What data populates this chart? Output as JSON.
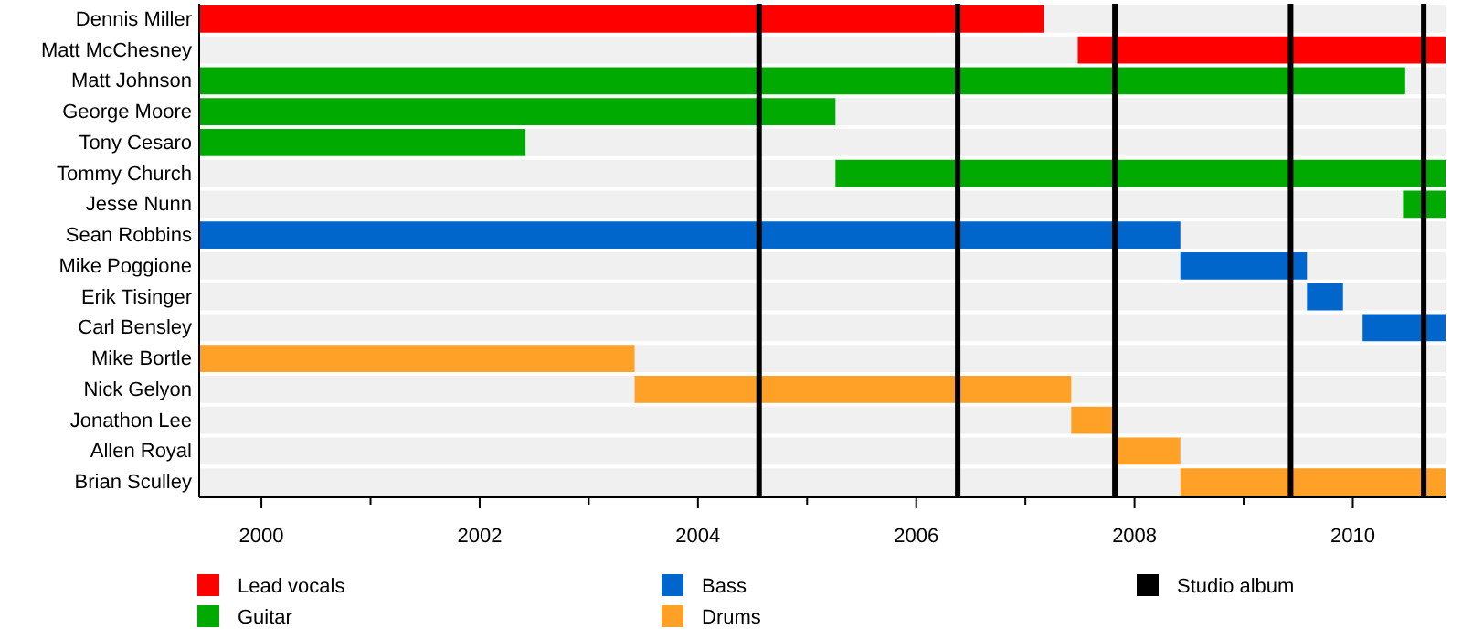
{
  "chart_data": {
    "type": "bar",
    "orientation": "horizontal",
    "categories": [
      "Dennis Miller",
      "Matt McChesney",
      "Matt Johnson",
      "George Moore",
      "Tony Cesaro",
      "Tommy Church",
      "Jesse Nunn",
      "Sean Robbins",
      "Mike Poggione",
      "Erik Tisinger",
      "Carl Bensley",
      "Mike Bortle",
      "Nick Gelyon",
      "Jonathon Lee",
      "Allen Royal",
      "Brian Sculley"
    ],
    "series": [
      {
        "name": "Lead vocals",
        "color": "#ff0000",
        "values": [
          7.74,
          3.37,
          null,
          null,
          null,
          null,
          null,
          null,
          null,
          null,
          null,
          null,
          null,
          null,
          null,
          null
        ],
        "base": [
          1999.43,
          2007.48,
          null,
          null,
          null,
          null,
          null,
          null,
          null,
          null,
          null,
          null,
          null,
          null,
          null,
          null
        ]
      },
      {
        "name": "Guitar",
        "color": "#00aa00",
        "values": [
          null,
          null,
          11.05,
          5.83,
          2.99,
          5.59,
          0.39,
          null,
          null,
          null,
          null,
          null,
          null,
          null,
          null,
          null
        ],
        "base": [
          null,
          null,
          1999.43,
          1999.43,
          1999.43,
          2005.26,
          2010.46,
          null,
          null,
          null,
          null,
          null,
          null,
          null,
          null,
          null
        ]
      },
      {
        "name": "Bass",
        "color": "#0066cc",
        "values": [
          null,
          null,
          null,
          null,
          null,
          null,
          null,
          8.99,
          1.16,
          0.33,
          0.76,
          null,
          null,
          null,
          null,
          null
        ],
        "base": [
          null,
          null,
          null,
          null,
          null,
          null,
          null,
          1999.43,
          2008.42,
          2009.58,
          2010.09,
          null,
          null,
          null,
          null,
          null
        ]
      },
      {
        "name": "Drums",
        "color": "#ffa126",
        "values": [
          null,
          null,
          null,
          null,
          null,
          null,
          null,
          null,
          null,
          null,
          null,
          3.99,
          4.0,
          0.41,
          0.59,
          2.43
        ],
        "base": [
          null,
          null,
          null,
          null,
          null,
          null,
          null,
          null,
          null,
          null,
          null,
          1999.43,
          2003.42,
          2007.42,
          2007.83,
          2008.42
        ]
      }
    ],
    "xlim": [
      1999.43,
      2010.85
    ],
    "xticks": [
      2000,
      {
        "value": 2001,
        "label": null
      },
      2002,
      {
        "value": 2003,
        "label": null
      },
      2004,
      {
        "value": 2005,
        "label": null
      },
      2006,
      {
        "value": 2007,
        "label": null
      },
      2008,
      {
        "value": 2009,
        "label": null
      },
      2010
    ],
    "ref_lines": [
      {
        "axis": "x",
        "value": 2004.56,
        "label": "Studio album",
        "color": "#000000"
      },
      {
        "axis": "x",
        "value": 2006.38,
        "color": "#000000"
      },
      {
        "axis": "x",
        "value": 2007.82,
        "color": "#000000"
      },
      {
        "axis": "x",
        "value": 2009.43,
        "color": "#000000"
      },
      {
        "axis": "x",
        "value": 2010.65,
        "color": "#000000"
      }
    ],
    "legend": "bottom"
  }
}
